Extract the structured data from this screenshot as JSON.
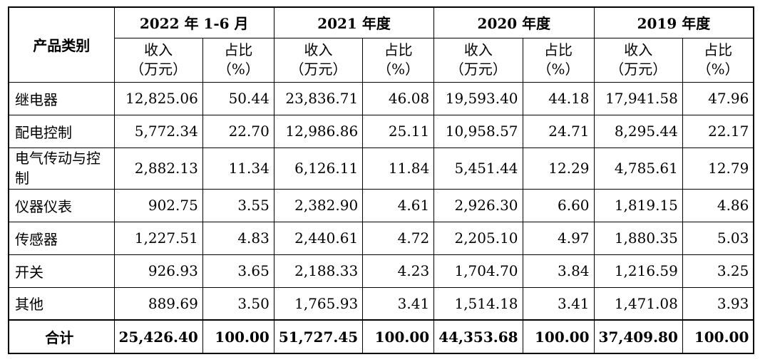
{
  "table": {
    "category_header": "产品类别",
    "periods": [
      "2022 年 1-6 月",
      "2021 年度",
      "2020 年度",
      "2019 年度"
    ],
    "revenue_label_line1": "收入",
    "revenue_label_line2": "（万元）",
    "share_label_line1": "占比",
    "share_label_line2": "（%）",
    "rows": [
      {
        "category": "继电器",
        "values": [
          "12,825.06",
          "50.44",
          "23,836.71",
          "46.08",
          "19,593.40",
          "44.18",
          "17,941.58",
          "47.96"
        ]
      },
      {
        "category": "配电控制",
        "values": [
          "5,772.34",
          "22.70",
          "12,986.86",
          "25.11",
          "10,958.57",
          "24.71",
          "8,295.44",
          "22.17"
        ]
      },
      {
        "category": "电气传动与控制",
        "values": [
          "2,882.13",
          "11.34",
          "6,126.11",
          "11.84",
          "5,451.44",
          "12.29",
          "4,785.61",
          "12.79"
        ]
      },
      {
        "category": "仪器仪表",
        "values": [
          "902.75",
          "3.55",
          "2,382.90",
          "4.61",
          "2,926.30",
          "6.60",
          "1,819.15",
          "4.86"
        ]
      },
      {
        "category": "传感器",
        "values": [
          "1,227.51",
          "4.83",
          "2,440.61",
          "4.72",
          "2,205.10",
          "4.97",
          "1,880.35",
          "5.03"
        ]
      },
      {
        "category": "开关",
        "values": [
          "926.93",
          "3.65",
          "2,188.33",
          "4.23",
          "1,704.70",
          "3.84",
          "1,216.59",
          "3.25"
        ]
      },
      {
        "category": "其他",
        "values": [
          "889.69",
          "3.50",
          "1,765.93",
          "3.41",
          "1,514.18",
          "3.41",
          "1,471.08",
          "3.93"
        ]
      }
    ],
    "total": {
      "category": "合计",
      "values": [
        "25,426.40",
        "100.00",
        "51,727.45",
        "100.00",
        "44,353.68",
        "100.00",
        "37,409.80",
        "100.00"
      ]
    }
  }
}
